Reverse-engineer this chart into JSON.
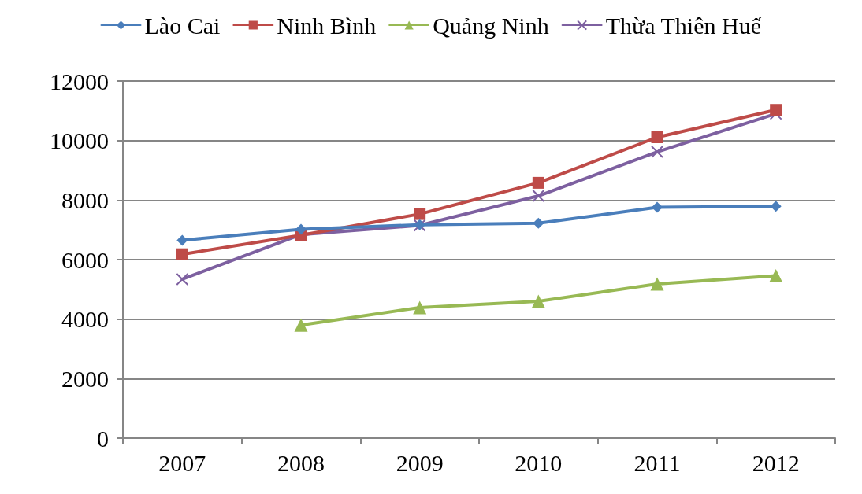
{
  "chart_data": {
    "type": "line",
    "categories": [
      "2007",
      "2008",
      "2009",
      "2010",
      "2011",
      "2012"
    ],
    "series": [
      {
        "name": "Lào Cai",
        "color": "#4a7ebb",
        "marker": "diamond",
        "values": [
          6650,
          7020,
          7170,
          7220,
          7760,
          7790
        ]
      },
      {
        "name": "Ninh Bình",
        "color": "#be4b48",
        "marker": "square",
        "values": [
          6180,
          6820,
          7530,
          8580,
          10110,
          11030
        ]
      },
      {
        "name": "Quảng Ninh",
        "color": "#98b954",
        "marker": "triangle",
        "values": [
          null,
          3800,
          4390,
          4600,
          5180,
          5460
        ]
      },
      {
        "name": "Thừa Thiên Huế",
        "color": "#7d60a0",
        "marker": "cross",
        "values": [
          5340,
          6840,
          7150,
          8140,
          9620,
          10900
        ]
      }
    ],
    "ylim": [
      0,
      12000
    ],
    "yticks": [
      0,
      2000,
      4000,
      6000,
      8000,
      10000,
      12000
    ],
    "grid": "y",
    "legend": "top",
    "line_style": "solid"
  }
}
